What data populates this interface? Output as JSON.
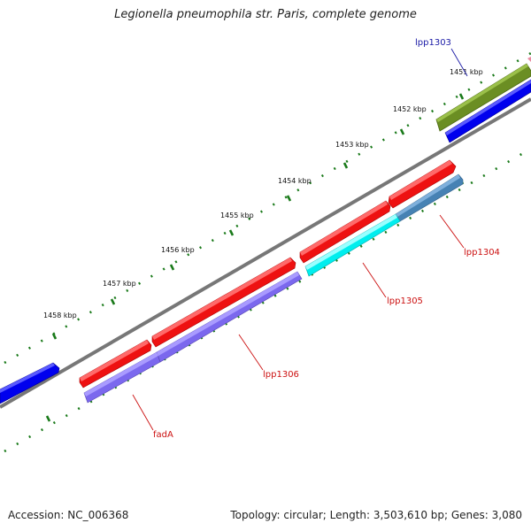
{
  "title": "Legionella pneumophila str. Paris, complete genome",
  "footer": {
    "accession": "Accession: NC_006368",
    "info": "Topology: circular; Length: 3,503,610 bp; Genes: 3,080"
  },
  "ticks": [
    "1451 kbp",
    "1452 kbp",
    "1453 kbp",
    "1454 kbp",
    "1455 kbp",
    "1456 kbp",
    "1457 kbp",
    "1458 kbp"
  ],
  "genes": [
    "lpp1303",
    "lpp1304",
    "lpp1305",
    "lpp1306",
    "fadA"
  ],
  "colors": {
    "label_blue": "#1a1aa6",
    "label_red": "#cc1111",
    "cds_red": "#ee1111",
    "cds_blue": "#0000ee",
    "cds_olive": "#6b8e23",
    "cds_cyan": "#00eeee",
    "cds_steel": "#4682b4",
    "cds_slate": "#7b68ee",
    "backbone": "#777777",
    "tick_green": "#1a7a1a"
  }
}
